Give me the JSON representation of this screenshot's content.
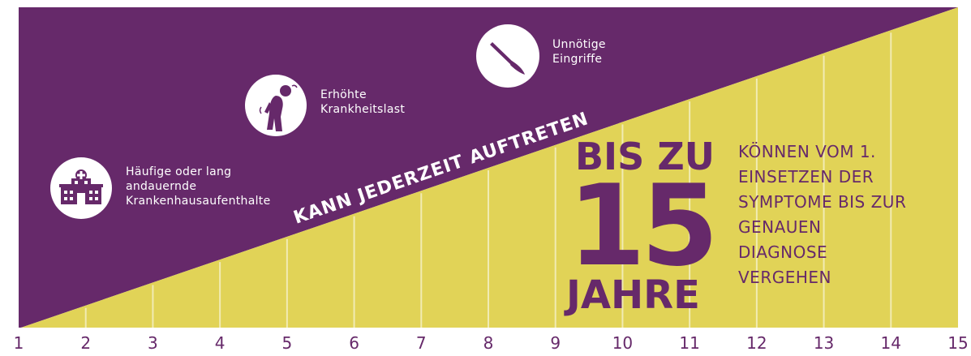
{
  "colors": {
    "purple": "#66296a",
    "yellow": "#e1d357",
    "white": "#ffffff"
  },
  "diagonal_label": "KANN JEDERZEIT AUFTRETEN",
  "events": [
    {
      "icon": "hospital-icon",
      "label": "Häufige oder lang\nandauernde\nKrankenhausaufenthalte"
    },
    {
      "icon": "sick-person-icon",
      "label": "Erhöhte\nKrankheitslast"
    },
    {
      "icon": "scalpel-icon",
      "label": "Unnötige\nEingriffe"
    }
  ],
  "headline": {
    "prefix": "BIS ZU",
    "number": "15",
    "unit": "JAHRE"
  },
  "description": "KÖNNEN VOM 1.\nEINSETZEN DER\nSYMPTOME BIS ZUR\nGENAUEN\nDIAGNOSE\nVERGEHEN",
  "axis_ticks": [
    "1",
    "2",
    "3",
    "4",
    "5",
    "6",
    "7",
    "8",
    "9",
    "10",
    "11",
    "12",
    "13",
    "14",
    "15"
  ]
}
